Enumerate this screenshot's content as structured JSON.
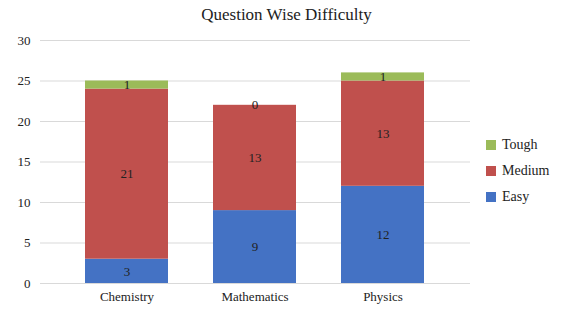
{
  "chart_data": {
    "type": "bar",
    "title": "Question Wise Difficulty",
    "categories": [
      "Chemistry",
      "Mathematics",
      "Physics"
    ],
    "series": [
      {
        "name": "Easy",
        "color": "#4472c4",
        "values": [
          3,
          9,
          12
        ]
      },
      {
        "name": "Medium",
        "color": "#c0504d",
        "values": [
          21,
          13,
          13
        ]
      },
      {
        "name": "Tough",
        "color": "#9bbb59",
        "values": [
          1,
          0,
          1
        ]
      }
    ],
    "ylim": [
      0,
      30
    ],
    "yticks": [
      0,
      5,
      10,
      15,
      20,
      25,
      30
    ],
    "stacked": true,
    "data_labels": true,
    "grid": true,
    "legend": "right"
  }
}
